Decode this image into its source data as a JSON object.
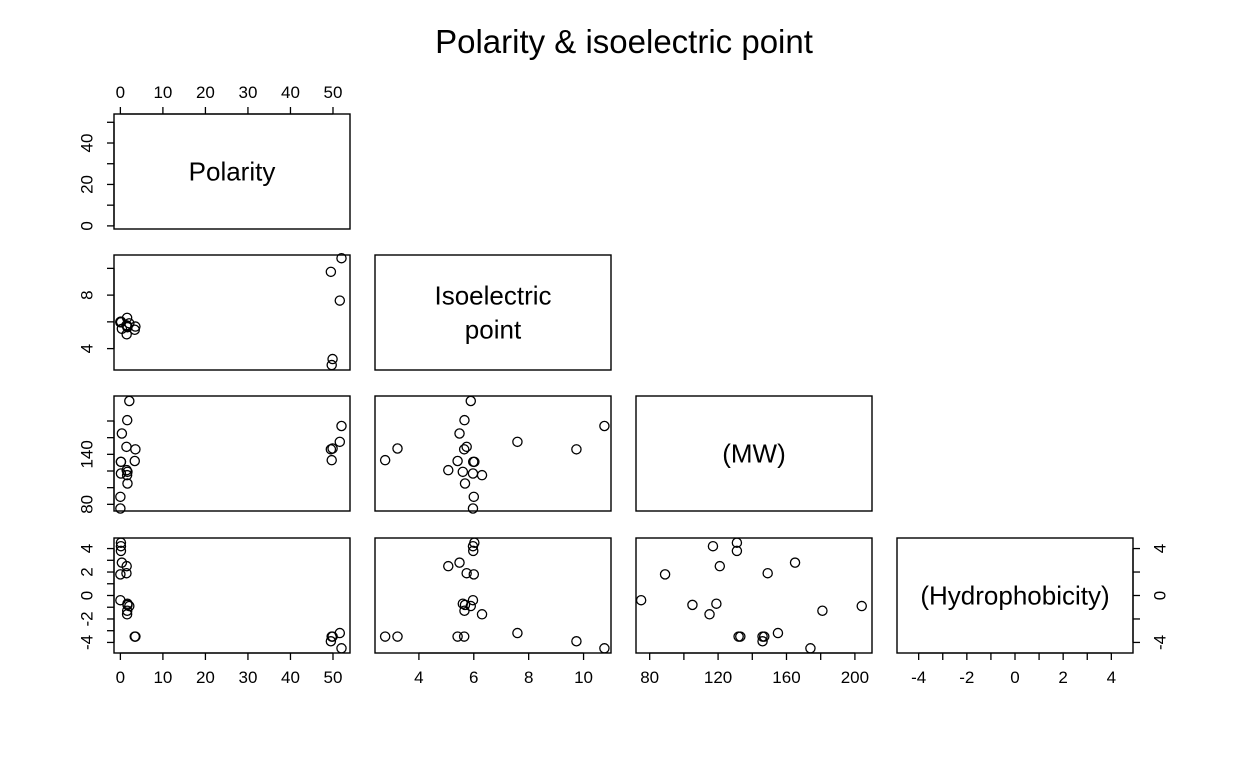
{
  "chart_data": {
    "type": "scatter",
    "layout": "pairs-lower-triangle",
    "title": "Polarity & isoelectric point",
    "variables": [
      {
        "key": "polarity",
        "label": "Polarity",
        "range": [
          -1.5,
          54
        ],
        "ticks": [
          0,
          10,
          20,
          30,
          40,
          50
        ],
        "tick_labels": [
          "0",
          "10",
          "20",
          "30",
          "40",
          "50"
        ]
      },
      {
        "key": "pi",
        "label": "Isoelectric point",
        "label_lines": [
          "Isoelectric",
          "point"
        ],
        "range": [
          2.4,
          11.0
        ],
        "ticks": [
          4,
          6,
          8,
          10
        ],
        "tick_labels": [
          "4",
          "6",
          "8",
          "10"
        ],
        "left_ticks": [
          4,
          6,
          8,
          10
        ],
        "left_tick_labels": [
          "4",
          "",
          "8",
          ""
        ]
      },
      {
        "key": "mw",
        "label": "(MW)",
        "range": [
          72,
          210
        ],
        "ticks": [
          80,
          100,
          120,
          140,
          160,
          180,
          200
        ],
        "tick_labels": [
          "80",
          "",
          "120",
          "",
          "160",
          "",
          "200"
        ],
        "left_ticks": [
          80,
          100,
          120,
          140,
          160,
          180
        ],
        "left_tick_labels": [
          "80",
          "",
          "",
          "140",
          "",
          ""
        ]
      },
      {
        "key": "hyd",
        "label": "(Hydrophobicity)",
        "range": [
          -4.9,
          4.9
        ],
        "ticks": [
          -4,
          -3,
          -2,
          -1,
          0,
          1,
          2,
          3,
          4
        ],
        "tick_labels": [
          "-4",
          "",
          "-2",
          "",
          "0",
          "",
          "2",
          "",
          "4"
        ],
        "right_ticks": [
          -4,
          -2,
          0,
          2,
          4
        ],
        "right_tick_labels": [
          "-4",
          "",
          "0",
          "",
          "4"
        ]
      }
    ],
    "polarity_top_ticks": [
      0,
      10,
      20,
      30,
      40,
      50
    ],
    "polarity_top_tick_labels": [
      "0",
      "10",
      "20",
      "30",
      "40",
      "50"
    ],
    "polarity_left_ticks": [
      0,
      10,
      20,
      30,
      40,
      50
    ],
    "polarity_left_tick_labels": [
      "0",
      "",
      "20",
      "",
      "40",
      ""
    ],
    "points": [
      {
        "polarity": 0.0,
        "pi": 6.0,
        "mw": 89,
        "hyd": 1.8
      },
      {
        "polarity": 52.0,
        "pi": 10.76,
        "mw": 174,
        "hyd": -4.5
      },
      {
        "polarity": 3.38,
        "pi": 5.41,
        "mw": 132,
        "hyd": -3.5
      },
      {
        "polarity": 49.7,
        "pi": 2.77,
        "mw": 133,
        "hyd": -3.5
      },
      {
        "polarity": 1.48,
        "pi": 5.07,
        "mw": 121,
        "hyd": 2.5
      },
      {
        "polarity": 3.53,
        "pi": 5.65,
        "mw": 146,
        "hyd": -3.5
      },
      {
        "polarity": 49.9,
        "pi": 3.22,
        "mw": 147,
        "hyd": -3.5
      },
      {
        "polarity": 0.0,
        "pi": 5.97,
        "mw": 75,
        "hyd": -0.4
      },
      {
        "polarity": 51.6,
        "pi": 7.59,
        "mw": 155,
        "hyd": -3.2
      },
      {
        "polarity": 0.13,
        "pi": 6.02,
        "mw": 131,
        "hyd": 4.5
      },
      {
        "polarity": 0.13,
        "pi": 5.98,
        "mw": 131,
        "hyd": 3.8
      },
      {
        "polarity": 49.5,
        "pi": 9.74,
        "mw": 146,
        "hyd": -3.9
      },
      {
        "polarity": 1.43,
        "pi": 5.74,
        "mw": 149,
        "hyd": 1.9
      },
      {
        "polarity": 0.35,
        "pi": 5.48,
        "mw": 165,
        "hyd": 2.8
      },
      {
        "polarity": 1.58,
        "pi": 6.3,
        "mw": 115,
        "hyd": -1.6
      },
      {
        "polarity": 1.67,
        "pi": 5.68,
        "mw": 105,
        "hyd": -0.8
      },
      {
        "polarity": 1.66,
        "pi": 5.6,
        "mw": 119,
        "hyd": -0.7
      },
      {
        "polarity": 2.1,
        "pi": 5.89,
        "mw": 204,
        "hyd": -0.9
      },
      {
        "polarity": 1.61,
        "pi": 5.66,
        "mw": 181,
        "hyd": -1.3
      },
      {
        "polarity": 0.13,
        "pi": 5.97,
        "mw": 117,
        "hyd": 4.2
      }
    ],
    "grid": false,
    "legend": "none"
  }
}
